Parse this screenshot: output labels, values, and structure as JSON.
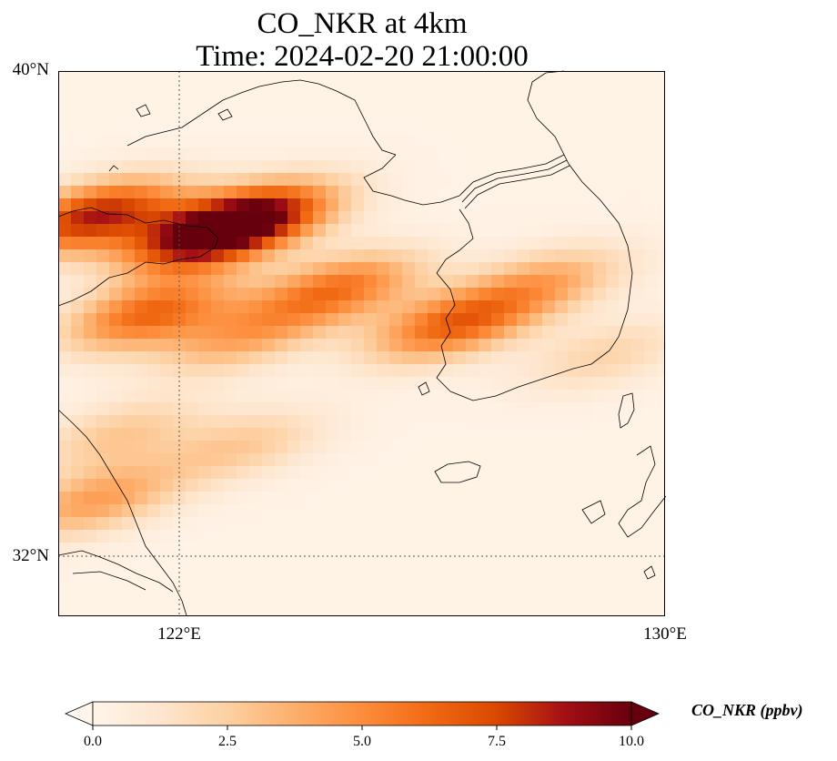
{
  "title_line1": "CO_NKR at 4km",
  "title_line2": "Time: 2024-02-20 21:00:00",
  "lat_labels": [
    "40°N",
    "32°N"
  ],
  "lon_labels": [
    "122°E",
    "130°E"
  ],
  "colorbar": {
    "label": "CO_NKR (ppbv)",
    "min": 0.0,
    "max": 10.0,
    "ticks": [
      "0.0",
      "2.5",
      "5.0",
      "7.5",
      "10.0"
    ],
    "colors": [
      "#fff5eb",
      "#fee6ce",
      "#fdd0a2",
      "#fdae6b",
      "#fd8d3c",
      "#f16913",
      "#d94801",
      "#a50f15",
      "#67000d"
    ]
  },
  "field": {
    "extent": {
      "lon_min": 120,
      "lon_max": 130,
      "lat_min": 31,
      "lat_max": 40
    },
    "plumes": [
      {
        "lon": 120.6,
        "lat": 37.6,
        "value": 8.2
      },
      {
        "lon": 122.5,
        "lat": 37.3,
        "value": 8.8
      },
      {
        "lon": 123.3,
        "lat": 37.6,
        "value": 6.0
      },
      {
        "lon": 124.6,
        "lat": 36.4,
        "value": 5.5
      },
      {
        "lon": 126.5,
        "lat": 35.8,
        "value": 6.0
      },
      {
        "lon": 128.0,
        "lat": 36.5,
        "value": 3.5
      },
      {
        "lon": 121.5,
        "lat": 36.0,
        "value": 6.0
      },
      {
        "lon": 123.0,
        "lat": 35.6,
        "value": 3.5
      },
      {
        "lon": 121.0,
        "lat": 34.0,
        "value": 2.5
      },
      {
        "lon": 123.0,
        "lat": 33.8,
        "value": 2.5
      },
      {
        "lon": 120.6,
        "lat": 32.9,
        "value": 4.0
      },
      {
        "lon": 129.0,
        "lat": 35.3,
        "value": 2.0
      }
    ]
  }
}
